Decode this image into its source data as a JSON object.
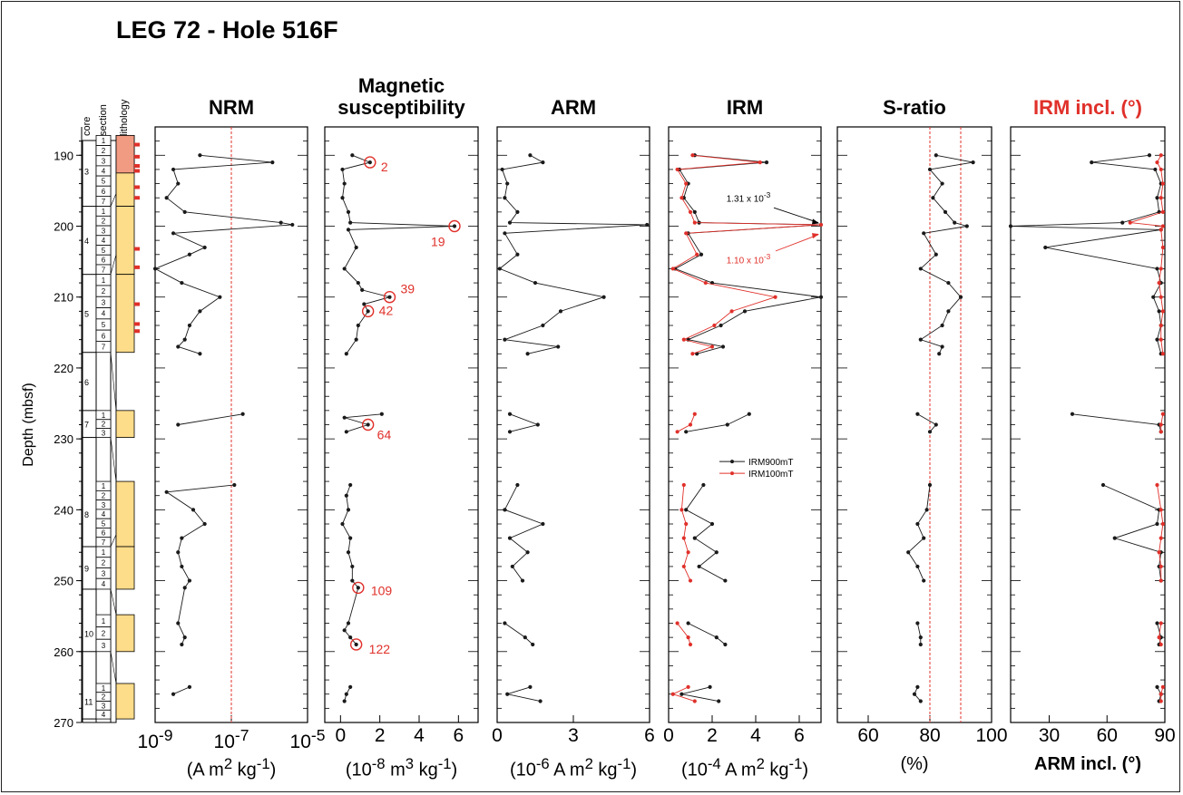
{
  "figure_title": "LEG 72 - Hole 516F",
  "y_axis": {
    "label": "Depth (mbsf)",
    "ticks": [
      "190",
      "200",
      "210",
      "220",
      "230",
      "240",
      "250",
      "260",
      "270"
    ]
  },
  "lithology_column": {
    "headers": [
      "core",
      "section",
      "lithology"
    ],
    "cores": [
      {
        "label": "3",
        "sections": [
          "1",
          "2",
          "3",
          "4",
          "5",
          "6",
          "7"
        ]
      },
      {
        "label": "4",
        "sections": [
          "1",
          "2",
          "3",
          "4",
          "5",
          "6",
          "7"
        ]
      },
      {
        "label": "5",
        "sections": [
          "1",
          "2",
          "3",
          "4",
          "5",
          "6",
          "7"
        ]
      },
      {
        "label": "6",
        "sections": []
      },
      {
        "label": "7",
        "sections": [
          "1",
          "2",
          "3"
        ]
      },
      {
        "label": "8",
        "sections": [
          "1",
          "2",
          "3",
          "4",
          "5",
          "6",
          "7"
        ]
      },
      {
        "label": "9",
        "sections": [
          "1",
          "2",
          "3",
          "4"
        ]
      },
      {
        "label": "10",
        "sections": [
          "1",
          "2",
          "3"
        ]
      },
      {
        "label": "11",
        "sections": [
          "1",
          "2",
          "3",
          "4"
        ]
      }
    ]
  },
  "panels": [
    {
      "title": "NRM",
      "unit_html": "(A m<sup>2</sup> kg<sup>-1</sup>)",
      "tick_labels_html": [
        "10<sup>-9</sup>",
        "10<sup>-7</sup>",
        "10<sup>-5</sup>"
      ]
    },
    {
      "title": "Magnetic\nsusceptibility",
      "unit_html": "(10<sup>-8</sup> m<sup>3</sup> kg<sup>-1</sup>)",
      "tick_labels_html": [
        "0",
        "2",
        "4",
        "6"
      ]
    },
    {
      "title": "ARM",
      "unit_html": "(10<sup>-6</sup> A m<sup>2</sup> kg<sup>-1</sup>)",
      "tick_labels_html": [
        "0",
        "3",
        "6"
      ]
    },
    {
      "title": "IRM",
      "unit_html": "(10<sup>-4</sup> A m<sup>2</sup> kg<sup>-1</sup>)",
      "tick_labels_html": [
        "0",
        "2",
        "4",
        "6"
      ]
    },
    {
      "title": "S-ratio",
      "unit_html": "(%)",
      "tick_labels_html": [
        "60",
        "80",
        "100"
      ]
    },
    {
      "title": "IRM incl. (°)",
      "unit_html": "ARM incl. (°)",
      "tick_labels_html": [
        "30",
        "60",
        "90"
      ]
    }
  ],
  "annotations": {
    "susceptibility_labels": [
      "2",
      "19",
      "39",
      "42",
      "64",
      "109",
      "122"
    ],
    "irm_offscale": [
      "1.31 x 10<sup>-3</sup>",
      "1.10 x 10<sup>-3</sup>"
    ],
    "irm_legend": [
      "IRM900mT",
      "IRM100mT"
    ]
  },
  "colors": {
    "series_black": "#1a1a1a",
    "series_red": "#e0302a",
    "lithology_fill": "#fddc8a",
    "lithology_red": "#f29b83",
    "ref_line": "#e0302a"
  },
  "chart_data": [
    {
      "type": "line",
      "title": "NRM",
      "xlabel": "(A m2 kg-1)",
      "ylabel": "Depth (mbsf)",
      "x_scale": "log",
      "xlim": [
        1e-09,
        1e-05
      ],
      "ylim": [
        270,
        186
      ],
      "reference_lines_x": [
        1e-07
      ],
      "series": [
        {
          "color": "black",
          "depth": [
            190,
            191,
            192,
            194,
            196,
            198,
            199.5,
            199.8,
            201,
            203,
            204,
            206,
            208,
            210,
            212,
            214,
            216,
            217,
            218,
            226.5,
            228,
            236.5,
            237.5,
            240,
            242,
            244,
            246,
            248,
            250,
            251,
            256,
            258,
            259,
            265,
            266
          ],
          "values": [
            1.5e-08,
            1.2e-06,
            3e-09,
            4e-09,
            2e-09,
            6e-09,
            2e-06,
            4e-06,
            3e-09,
            2e-08,
            8e-09,
            1e-09,
            5e-09,
            5e-08,
            1.5e-08,
            8e-09,
            6e-09,
            4e-09,
            1.5e-08,
            2e-07,
            4e-09,
            1.2e-07,
            2e-09,
            1e-08,
            2e-08,
            5e-09,
            4e-09,
            5e-09,
            8e-09,
            6e-09,
            4e-09,
            6e-09,
            5e-09,
            8e-09,
            3e-09
          ]
        }
      ]
    },
    {
      "type": "line",
      "title": "Magnetic susceptibility",
      "xlabel": "(10-8 m3 kg-1)",
      "ylabel": "Depth (mbsf)",
      "xlim": [
        -0.8,
        7
      ],
      "ylim": [
        270,
        186
      ],
      "series": [
        {
          "color": "black",
          "depth": [
            190,
            191,
            192,
            194,
            196,
            198,
            199.5,
            200,
            200.5,
            203,
            206,
            208,
            209,
            210,
            211,
            212,
            214,
            216,
            218,
            226.5,
            227,
            228,
            229,
            236.5,
            238,
            240,
            242,
            244,
            246,
            248,
            250,
            251,
            256,
            257,
            258,
            259,
            265,
            266,
            267
          ],
          "values": [
            0.6,
            1.5,
            0.1,
            0.2,
            0.1,
            0.4,
            0.5,
            5.8,
            0.4,
            0.8,
            0.2,
            0.9,
            1.1,
            2.5,
            1.2,
            1.4,
            0.9,
            0.8,
            0.3,
            2.1,
            0.2,
            1.4,
            0.3,
            0.5,
            0.3,
            0.4,
            0.1,
            0.5,
            0.4,
            0.6,
            0.6,
            0.9,
            0.4,
            0.2,
            0.5,
            0.8,
            0.5,
            0.3,
            0.2
          ]
        }
      ]
    },
    {
      "type": "line",
      "title": "ARM",
      "xlabel": "(10-6 A m2 kg-1)",
      "ylabel": "Depth (mbsf)",
      "xlim": [
        0,
        6
      ],
      "ylim": [
        270,
        186
      ],
      "series": [
        {
          "color": "black",
          "depth": [
            190,
            191,
            192,
            194,
            196,
            198,
            199.5,
            199.8,
            201,
            204,
            206,
            208,
            210,
            212,
            214,
            216,
            217,
            218,
            226.5,
            228,
            229,
            236.5,
            240,
            242,
            244,
            246,
            248,
            250,
            256,
            258,
            259,
            265,
            266,
            267
          ],
          "values": [
            1.3,
            1.8,
            0.2,
            0.4,
            0.3,
            0.8,
            0.5,
            5.9,
            0.3,
            0.8,
            0.1,
            1.5,
            4.2,
            2.5,
            1.8,
            0.3,
            2.4,
            1.2,
            0.5,
            1.6,
            0.5,
            0.8,
            0.3,
            1.8,
            0.5,
            1.2,
            0.6,
            1.0,
            0.3,
            1.1,
            1.4,
            1.3,
            0.4,
            1.7
          ]
        }
      ]
    },
    {
      "type": "line",
      "title": "IRM",
      "xlabel": "(10-4 A m2 kg-1)",
      "ylabel": "Depth (mbsf)",
      "xlim": [
        0,
        7
      ],
      "ylim": [
        270,
        186
      ],
      "series": [
        {
          "name": "IRM900mT",
          "color": "black",
          "depth": [
            190,
            191,
            192,
            194,
            196,
            198,
            199.5,
            199.8,
            201,
            204,
            206,
            208,
            210,
            212,
            214,
            216,
            217,
            218,
            226.5,
            228,
            229,
            236.5,
            240,
            242,
            244,
            246,
            248,
            250,
            256,
            258,
            259,
            265,
            266,
            267
          ],
          "values": [
            1.2,
            4.5,
            0.5,
            0.9,
            0.7,
            1.2,
            1.4,
            7.0,
            0.9,
            1.5,
            0.3,
            2.0,
            7.0,
            3.5,
            2.4,
            0.9,
            2.5,
            1.3,
            3.7,
            2.7,
            0.8,
            1.6,
            0.8,
            2.0,
            1.2,
            2.2,
            1.4,
            2.6,
            0.9,
            2.2,
            2.6,
            1.9,
            0.6,
            2.3
          ]
        },
        {
          "name": "IRM100mT",
          "color": "red",
          "depth": [
            190,
            191,
            192,
            194,
            196,
            198,
            199.5,
            199.8,
            201,
            204,
            206,
            208,
            210,
            212,
            214,
            216,
            217,
            218,
            226.5,
            228,
            229,
            236.5,
            240,
            242,
            244,
            246,
            248,
            250,
            256,
            258,
            259,
            265,
            266,
            267
          ],
          "values": [
            1.1,
            4.2,
            0.4,
            0.8,
            0.6,
            1.0,
            1.2,
            7.0,
            0.8,
            1.3,
            0.2,
            1.7,
            4.9,
            2.9,
            2.1,
            0.7,
            2.0,
            1.1,
            1.2,
            1.0,
            0.4,
            0.7,
            0.6,
            0.8,
            0.7,
            0.9,
            0.7,
            1.0,
            0.4,
            0.9,
            1.0,
            0.9,
            0.2,
            1.2
          ]
        }
      ]
    },
    {
      "type": "line",
      "title": "S-ratio",
      "xlabel": "(%)",
      "ylabel": "Depth (mbsf)",
      "xlim": [
        50,
        100
      ],
      "ylim": [
        270,
        186
      ],
      "reference_lines_x": [
        80,
        90
      ],
      "series": [
        {
          "color": "black",
          "depth": [
            190,
            191,
            192,
            194,
            196,
            198,
            199.5,
            200,
            201,
            204,
            206,
            208,
            210,
            212,
            214,
            216,
            217,
            218,
            226.5,
            228,
            229,
            236.5,
            240,
            242,
            244,
            246,
            248,
            250,
            256,
            258,
            259,
            265,
            266,
            267
          ],
          "values": [
            82,
            94,
            80,
            84,
            81,
            85,
            88,
            92,
            78,
            82,
            77,
            86,
            90,
            86,
            84,
            77,
            84,
            83,
            76,
            82,
            80,
            80,
            79,
            76,
            78,
            73,
            76,
            78,
            76,
            77,
            77,
            76,
            75,
            77
          ]
        }
      ]
    },
    {
      "type": "line",
      "title": "IRM incl. (°) / ARM incl. (°)",
      "xlabel": "ARM incl. (°)",
      "ylabel": "Depth (mbsf)",
      "xlim": [
        10,
        90
      ],
      "ylim": [
        270,
        186
      ],
      "series": [
        {
          "color": "black",
          "depth": [
            190,
            191,
            192,
            194,
            196,
            198,
            199.5,
            200,
            200.5,
            203,
            206,
            208,
            210,
            212,
            214,
            216,
            218,
            226.5,
            228,
            229,
            236.5,
            240,
            242,
            244,
            246,
            248,
            250,
            256,
            258,
            259,
            265,
            266,
            267
          ],
          "values": [
            82,
            52,
            85,
            88,
            86,
            87,
            68,
            10,
            88,
            28,
            86,
            88,
            84,
            87,
            88,
            86,
            88,
            42,
            87,
            88,
            58,
            87,
            86,
            64,
            88,
            87,
            88,
            86,
            88,
            87,
            86,
            88,
            87
          ]
        },
        {
          "color": "red",
          "depth": [
            190,
            191,
            192,
            194,
            196,
            198,
            199.5,
            200,
            200.5,
            203,
            206,
            208,
            210,
            212,
            214,
            216,
            218,
            226.5,
            228,
            229,
            236.5,
            240,
            242,
            244,
            246,
            248,
            250,
            256,
            258,
            259,
            265,
            266,
            267
          ],
          "values": [
            88,
            86,
            88,
            89,
            88,
            89,
            72,
            89,
            88,
            89,
            88,
            87,
            88,
            89,
            88,
            88,
            89,
            89,
            88,
            88,
            86,
            88,
            89,
            88,
            87,
            88,
            88,
            88,
            87,
            88,
            89,
            88,
            88
          ]
        }
      ]
    }
  ]
}
